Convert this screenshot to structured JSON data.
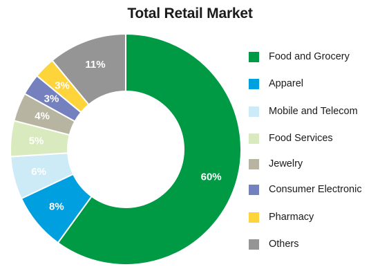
{
  "chart_data": {
    "type": "pie",
    "variant": "donut",
    "title": "Total Retail Market",
    "legend_position": "right",
    "slices": [
      {
        "label": "Food and Grocery",
        "value": 60,
        "display": "60%",
        "color": "#009a44"
      },
      {
        "label": "Apparel",
        "value": 8,
        "display": "8%",
        "color": "#009fdf"
      },
      {
        "label": "Mobile and Telecom",
        "value": 6,
        "display": "6%",
        "color": "#cdeaf7"
      },
      {
        "label": "Food Services",
        "value": 5,
        "display": "5%",
        "color": "#d9ebbe"
      },
      {
        "label": "Jewelry",
        "value": 4,
        "display": "4%",
        "color": "#b7b5a2"
      },
      {
        "label": "Consumer Electronic",
        "value": 3,
        "display": "3%",
        "color": "#7581bf"
      },
      {
        "label": "Pharmacy",
        "value": 3,
        "display": "3%",
        "color": "#fed43b"
      },
      {
        "label": "Others",
        "value": 11,
        "display": "11%",
        "color": "#959595"
      }
    ]
  }
}
